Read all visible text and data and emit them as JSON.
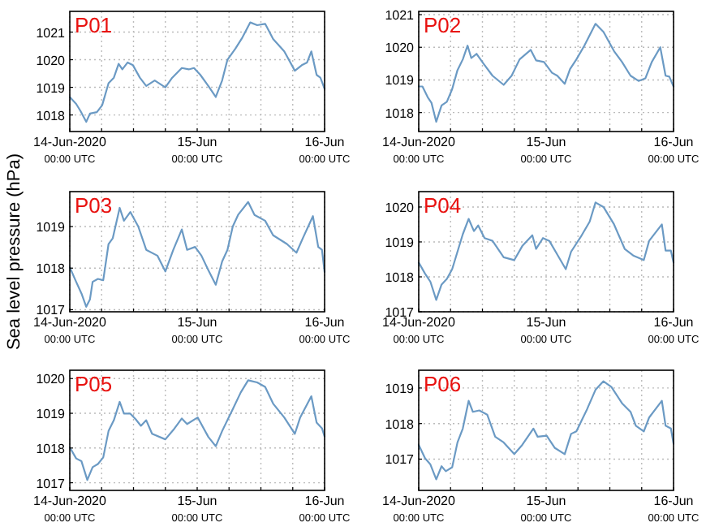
{
  "chart_data": [
    {
      "type": "line",
      "title": "P01",
      "xlim": [
        "2020-06-14T00:00",
        "2020-06-16T00:00"
      ],
      "ylim": [
        1017.4,
        1021.75
      ],
      "yticks": [
        1018,
        1019,
        1020,
        1021
      ],
      "grid": true,
      "xticks": [
        {
          "value": "2020-06-14T00:00",
          "label": "14-Jun-2020\n00:00 UTC"
        },
        {
          "value": "2020-06-14T06:00",
          "label": null
        },
        {
          "value": "2020-06-14T12:00",
          "label": null
        },
        {
          "value": "2020-06-14T18:00",
          "label": null
        },
        {
          "value": "2020-06-15T00:00",
          "label": "15-Jun\n00:00 UTC"
        },
        {
          "value": "2020-06-15T06:00",
          "label": null
        },
        {
          "value": "2020-06-15T12:00",
          "label": null
        },
        {
          "value": "2020-06-15T18:00",
          "label": null
        },
        {
          "value": "2020-06-16T00:00",
          "label": "16-Jun\n00:00 UTC"
        }
      ],
      "series": [
        {
          "color": "#6b9ac4",
          "x": [
            "2020-06-14T00:00",
            "2020-06-14T01:12",
            "2020-06-14T02:00",
            "2020-06-14T03:06",
            "2020-06-14T03:48",
            "2020-06-14T05:06",
            "2020-06-14T06:06",
            "2020-06-14T07:18",
            "2020-06-14T08:18",
            "2020-06-14T09:12",
            "2020-06-14T09:54",
            "2020-06-14T10:54",
            "2020-06-14T11:54",
            "2020-06-14T13:12",
            "2020-06-14T14:24",
            "2020-06-14T16:00",
            "2020-06-14T18:00",
            "2020-06-14T19:18",
            "2020-06-14T21:06",
            "2020-06-14T22:24",
            "2020-06-14T23:24",
            "2020-06-15T00:36",
            "2020-06-15T02:06",
            "2020-06-15T03:30",
            "2020-06-15T04:42",
            "2020-06-15T05:42",
            "2020-06-15T07:12",
            "2020-06-15T08:30",
            "2020-06-15T10:00",
            "2020-06-15T11:18",
            "2020-06-15T12:48",
            "2020-06-15T14:18",
            "2020-06-15T16:24",
            "2020-06-15T18:24",
            "2020-06-15T19:42",
            "2020-06-15T20:42",
            "2020-06-15T21:30",
            "2020-06-15T22:30",
            "2020-06-15T23:12",
            "2020-06-16T00:00"
          ],
          "values": [
            1018.65,
            1018.4,
            1018.15,
            1017.75,
            1018.05,
            1018.1,
            1018.35,
            1019.15,
            1019.35,
            1019.85,
            1019.65,
            1019.9,
            1019.8,
            1019.35,
            1019.05,
            1019.25,
            1019.0,
            1019.35,
            1019.7,
            1019.65,
            1019.7,
            1019.45,
            1019.05,
            1018.65,
            1019.25,
            1020.0,
            1020.4,
            1020.8,
            1021.35,
            1021.25,
            1021.3,
            1020.75,
            1020.3,
            1019.6,
            1019.8,
            1019.9,
            1020.3,
            1019.45,
            1019.35,
            1018.95
          ]
        }
      ]
    },
    {
      "type": "line",
      "title": "P02",
      "xlim": [
        "2020-06-14T00:00",
        "2020-06-16T00:00"
      ],
      "ylim": [
        1017.42,
        1021.1
      ],
      "yticks": [
        1018,
        1019,
        1020,
        1021
      ],
      "grid": true,
      "xticks": [
        {
          "value": "2020-06-14T00:00",
          "label": "14-Jun-2020\n00:00 UTC"
        },
        {
          "value": "2020-06-14T06:00",
          "label": null
        },
        {
          "value": "2020-06-14T12:00",
          "label": null
        },
        {
          "value": "2020-06-14T18:00",
          "label": null
        },
        {
          "value": "2020-06-15T00:00",
          "label": "15-Jun\n00:00 UTC"
        },
        {
          "value": "2020-06-15T06:00",
          "label": null
        },
        {
          "value": "2020-06-15T12:00",
          "label": null
        },
        {
          "value": "2020-06-15T18:00",
          "label": null
        },
        {
          "value": "2020-06-16T00:00",
          "label": "16-Jun\n00:00 UTC"
        }
      ],
      "series": [
        {
          "color": "#6b9ac4",
          "x": [
            "2020-06-14T00:00",
            "2020-06-14T00:42",
            "2020-06-14T01:42",
            "2020-06-14T02:24",
            "2020-06-14T03:18",
            "2020-06-14T04:18",
            "2020-06-14T05:18",
            "2020-06-14T06:18",
            "2020-06-14T07:18",
            "2020-06-14T08:18",
            "2020-06-14T09:12",
            "2020-06-14T09:54",
            "2020-06-14T10:54",
            "2020-06-14T12:12",
            "2020-06-14T13:54",
            "2020-06-14T16:00",
            "2020-06-14T17:30",
            "2020-06-14T19:00",
            "2020-06-14T21:06",
            "2020-06-14T22:06",
            "2020-06-14T23:36",
            "2020-06-15T01:06",
            "2020-06-15T02:06",
            "2020-06-15T03:30",
            "2020-06-15T04:30",
            "2020-06-15T05:42",
            "2020-06-15T07:12",
            "2020-06-15T09:18",
            "2020-06-15T10:48",
            "2020-06-15T12:48",
            "2020-06-15T14:18",
            "2020-06-15T15:54",
            "2020-06-15T17:24",
            "2020-06-15T18:42",
            "2020-06-15T19:54",
            "2020-06-15T21:30",
            "2020-06-15T22:30",
            "2020-06-15T23:12",
            "2020-06-16T00:00"
          ],
          "values": [
            1018.8,
            1018.8,
            1018.47,
            1018.3,
            1017.72,
            1018.22,
            1018.33,
            1018.72,
            1019.3,
            1019.63,
            1020.05,
            1019.67,
            1019.8,
            1019.5,
            1019.13,
            1018.85,
            1019.13,
            1019.63,
            1019.92,
            1019.6,
            1019.55,
            1019.22,
            1019.13,
            1018.88,
            1019.33,
            1019.63,
            1020.05,
            1020.72,
            1020.47,
            1019.88,
            1019.55,
            1019.13,
            1018.97,
            1019.05,
            1019.55,
            1020.0,
            1019.13,
            1019.1,
            1018.8
          ]
        }
      ]
    },
    {
      "type": "line",
      "title": "P03",
      "ylabel": "Sea level pressure (hPa)",
      "xlim": [
        "2020-06-14T00:00",
        "2020-06-16T00:00"
      ],
      "ylim": [
        1016.95,
        1019.84
      ],
      "yticks": [
        1017,
        1018,
        1019
      ],
      "grid": true,
      "xticks": [
        {
          "value": "2020-06-14T00:00",
          "label": "14-Jun-2020\n00:00 UTC"
        },
        {
          "value": "2020-06-14T06:00",
          "label": null
        },
        {
          "value": "2020-06-14T12:00",
          "label": null
        },
        {
          "value": "2020-06-14T18:00",
          "label": null
        },
        {
          "value": "2020-06-15T00:00",
          "label": "15-Jun\n00:00 UTC"
        },
        {
          "value": "2020-06-15T06:00",
          "label": null
        },
        {
          "value": "2020-06-15T12:00",
          "label": null
        },
        {
          "value": "2020-06-15T18:00",
          "label": null
        },
        {
          "value": "2020-06-16T00:00",
          "label": "16-Jun\n00:00 UTC"
        }
      ],
      "series": [
        {
          "color": "#6b9ac4",
          "x": [
            "2020-06-14T00:00",
            "2020-06-14T01:12",
            "2020-06-14T02:12",
            "2020-06-14T03:06",
            "2020-06-14T03:48",
            "2020-06-14T04:18",
            "2020-06-14T05:18",
            "2020-06-14T06:18",
            "2020-06-14T07:18",
            "2020-06-14T08:06",
            "2020-06-14T09:24",
            "2020-06-14T10:12",
            "2020-06-14T11:24",
            "2020-06-14T12:54",
            "2020-06-14T14:24",
            "2020-06-14T16:30",
            "2020-06-14T18:00",
            "2020-06-14T19:30",
            "2020-06-14T21:06",
            "2020-06-14T22:06",
            "2020-06-14T23:36",
            "2020-06-15T00:48",
            "2020-06-15T02:06",
            "2020-06-15T03:30",
            "2020-06-15T04:42",
            "2020-06-15T05:42",
            "2020-06-15T06:42",
            "2020-06-15T07:42",
            "2020-06-15T09:36",
            "2020-06-15T10:48",
            "2020-06-15T12:48",
            "2020-06-15T14:18",
            "2020-06-15T16:54",
            "2020-06-15T18:42",
            "2020-06-15T19:54",
            "2020-06-15T21:48",
            "2020-06-15T22:48",
            "2020-06-15T23:30",
            "2020-06-16T00:00"
          ],
          "values": [
            1018.02,
            1017.67,
            1017.39,
            1017.07,
            1017.25,
            1017.67,
            1017.74,
            1017.71,
            1018.58,
            1018.72,
            1019.45,
            1019.14,
            1019.35,
            1019.0,
            1018.44,
            1018.3,
            1017.92,
            1018.44,
            1018.93,
            1018.44,
            1018.51,
            1018.3,
            1017.95,
            1017.6,
            1018.16,
            1018.44,
            1019.0,
            1019.28,
            1019.59,
            1019.28,
            1019.14,
            1018.79,
            1018.58,
            1018.37,
            1018.72,
            1019.25,
            1018.51,
            1018.44,
            1017.91
          ]
        }
      ]
    },
    {
      "type": "line",
      "title": "P04",
      "xlim": [
        "2020-06-14T00:00",
        "2020-06-16T00:00"
      ],
      "ylim": [
        1017.0,
        1020.44
      ],
      "yticks": [
        1017,
        1018,
        1019,
        1020
      ],
      "grid": true,
      "xticks": [
        {
          "value": "2020-06-14T00:00",
          "label": "14-Jun-2020\n00:00 UTC"
        },
        {
          "value": "2020-06-14T06:00",
          "label": null
        },
        {
          "value": "2020-06-14T12:00",
          "label": null
        },
        {
          "value": "2020-06-14T18:00",
          "label": null
        },
        {
          "value": "2020-06-15T00:00",
          "label": "15-Jun\n00:00 UTC"
        },
        {
          "value": "2020-06-15T06:00",
          "label": null
        },
        {
          "value": "2020-06-15T12:00",
          "label": null
        },
        {
          "value": "2020-06-15T18:00",
          "label": null
        },
        {
          "value": "2020-06-16T00:00",
          "label": "16-Jun\n00:00 UTC"
        }
      ],
      "series": [
        {
          "color": "#6b9ac4",
          "x": [
            "2020-06-14T00:00",
            "2020-06-14T01:12",
            "2020-06-14T02:12",
            "2020-06-14T03:18",
            "2020-06-14T04:18",
            "2020-06-14T05:18",
            "2020-06-14T06:18",
            "2020-06-14T07:18",
            "2020-06-14T08:18",
            "2020-06-14T09:24",
            "2020-06-14T10:24",
            "2020-06-14T11:12",
            "2020-06-14T12:24",
            "2020-06-14T13:54",
            "2020-06-14T16:00",
            "2020-06-14T18:00",
            "2020-06-14T19:30",
            "2020-06-14T21:24",
            "2020-06-14T22:06",
            "2020-06-14T23:24",
            "2020-06-15T00:36",
            "2020-06-15T02:06",
            "2020-06-15T03:42",
            "2020-06-15T04:42",
            "2020-06-15T06:42",
            "2020-06-15T08:12",
            "2020-06-15T09:18",
            "2020-06-15T10:48",
            "2020-06-15T12:48",
            "2020-06-15T14:48",
            "2020-06-15T16:24",
            "2020-06-15T18:24",
            "2020-06-15T19:24",
            "2020-06-15T21:48",
            "2020-06-15T22:30",
            "2020-06-15T23:30",
            "2020-06-16T00:00"
          ],
          "values": [
            1018.41,
            1018.09,
            1017.86,
            1017.34,
            1017.78,
            1017.94,
            1018.22,
            1018.72,
            1019.22,
            1019.66,
            1019.31,
            1019.47,
            1019.11,
            1019.03,
            1018.56,
            1018.48,
            1018.88,
            1019.19,
            1018.8,
            1019.11,
            1019.03,
            1018.64,
            1018.22,
            1018.72,
            1019.19,
            1019.58,
            1020.13,
            1020.0,
            1019.5,
            1018.8,
            1018.61,
            1018.48,
            1019.03,
            1019.5,
            1018.75,
            1018.75,
            1018.41
          ]
        }
      ]
    },
    {
      "type": "line",
      "title": "P05",
      "xlim": [
        "2020-06-14T00:00",
        "2020-06-16T00:00"
      ],
      "ylim": [
        1016.78,
        1020.24
      ],
      "yticks": [
        1017,
        1018,
        1019,
        1020
      ],
      "grid": true,
      "xticks": [
        {
          "value": "2020-06-14T00:00",
          "label": "14-Jun-2020\n00:00 UTC"
        },
        {
          "value": "2020-06-14T06:00",
          "label": null
        },
        {
          "value": "2020-06-14T12:00",
          "label": null
        },
        {
          "value": "2020-06-14T18:00",
          "label": null
        },
        {
          "value": "2020-06-15T00:00",
          "label": "15-Jun\n00:00 UTC"
        },
        {
          "value": "2020-06-15T06:00",
          "label": null
        },
        {
          "value": "2020-06-15T12:00",
          "label": null
        },
        {
          "value": "2020-06-15T18:00",
          "label": null
        },
        {
          "value": "2020-06-16T00:00",
          "label": "16-Jun\n00:00 UTC"
        }
      ],
      "series": [
        {
          "color": "#6b9ac4",
          "x": [
            "2020-06-14T00:00",
            "2020-06-14T01:12",
            "2020-06-14T02:12",
            "2020-06-14T03:18",
            "2020-06-14T04:18",
            "2020-06-14T05:18",
            "2020-06-14T06:18",
            "2020-06-14T07:18",
            "2020-06-14T08:18",
            "2020-06-14T09:24",
            "2020-06-14T10:12",
            "2020-06-14T11:24",
            "2020-06-14T12:24",
            "2020-06-14T13:24",
            "2020-06-14T14:24",
            "2020-06-14T15:30",
            "2020-06-14T18:00",
            "2020-06-14T19:30",
            "2020-06-14T21:06",
            "2020-06-14T22:06",
            "2020-06-15T00:06",
            "2020-06-15T02:06",
            "2020-06-15T03:30",
            "2020-06-15T04:42",
            "2020-06-15T06:42",
            "2020-06-15T08:12",
            "2020-06-15T09:36",
            "2020-06-15T11:18",
            "2020-06-15T12:48",
            "2020-06-15T14:18",
            "2020-06-15T16:24",
            "2020-06-15T18:24",
            "2020-06-15T19:24",
            "2020-06-15T21:30",
            "2020-06-15T22:30",
            "2020-06-15T23:30",
            "2020-06-16T00:00"
          ],
          "values": [
            1018.02,
            1017.7,
            1017.62,
            1017.08,
            1017.45,
            1017.54,
            1017.73,
            1018.49,
            1018.8,
            1019.33,
            1018.99,
            1018.99,
            1018.83,
            1018.64,
            1018.8,
            1018.41,
            1018.25,
            1018.52,
            1018.85,
            1018.69,
            1018.88,
            1018.32,
            1018.05,
            1018.49,
            1019.12,
            1019.6,
            1019.95,
            1019.89,
            1019.76,
            1019.28,
            1018.88,
            1018.41,
            1018.88,
            1019.49,
            1018.73,
            1018.57,
            1018.33
          ]
        }
      ]
    },
    {
      "type": "line",
      "title": "P06",
      "xlim": [
        "2020-06-14T00:00",
        "2020-06-16T00:00"
      ],
      "ylim": [
        1016.12,
        1019.5
      ],
      "yticks": [
        1017,
        1018,
        1019
      ],
      "grid": true,
      "xticks": [
        {
          "value": "2020-06-14T00:00",
          "label": "14-Jun-2020\n00:00 UTC"
        },
        {
          "value": "2020-06-14T06:00",
          "label": null
        },
        {
          "value": "2020-06-14T12:00",
          "label": null
        },
        {
          "value": "2020-06-14T18:00",
          "label": null
        },
        {
          "value": "2020-06-15T00:00",
          "label": "15-Jun\n00:00 UTC"
        },
        {
          "value": "2020-06-15T06:00",
          "label": null
        },
        {
          "value": "2020-06-15T12:00",
          "label": null
        },
        {
          "value": "2020-06-15T18:00",
          "label": null
        },
        {
          "value": "2020-06-16T00:00",
          "label": "16-Jun\n00:00 UTC"
        }
      ],
      "series": [
        {
          "color": "#6b9ac4",
          "x": [
            "2020-06-14T00:00",
            "2020-06-14T01:12",
            "2020-06-14T02:12",
            "2020-06-14T03:18",
            "2020-06-14T04:18",
            "2020-06-14T05:06",
            "2020-06-14T06:18",
            "2020-06-14T07:18",
            "2020-06-14T08:18",
            "2020-06-14T09:24",
            "2020-06-14T10:12",
            "2020-06-14T11:24",
            "2020-06-14T12:54",
            "2020-06-14T14:24",
            "2020-06-14T16:00",
            "2020-06-14T18:00",
            "2020-06-14T19:30",
            "2020-06-14T21:36",
            "2020-06-14T22:24",
            "2020-06-15T00:06",
            "2020-06-15T01:36",
            "2020-06-15T03:30",
            "2020-06-15T04:42",
            "2020-06-15T05:42",
            "2020-06-15T07:42",
            "2020-06-15T09:18",
            "2020-06-15T10:48",
            "2020-06-15T12:18",
            "2020-06-15T14:18",
            "2020-06-15T15:54",
            "2020-06-15T16:54",
            "2020-06-15T18:24",
            "2020-06-15T19:24",
            "2020-06-15T21:48",
            "2020-06-15T22:30",
            "2020-06-15T23:30",
            "2020-06-16T00:00"
          ],
          "values": [
            1017.4,
            1017.02,
            1016.85,
            1016.43,
            1016.8,
            1016.66,
            1016.77,
            1017.47,
            1017.86,
            1018.64,
            1018.33,
            1018.37,
            1018.25,
            1017.63,
            1017.47,
            1017.14,
            1017.4,
            1017.86,
            1017.63,
            1017.66,
            1017.32,
            1017.14,
            1017.71,
            1017.78,
            1018.4,
            1018.95,
            1019.19,
            1019.03,
            1018.57,
            1018.33,
            1017.94,
            1017.78,
            1018.17,
            1018.64,
            1017.94,
            1017.86,
            1017.44
          ]
        }
      ]
    }
  ]
}
